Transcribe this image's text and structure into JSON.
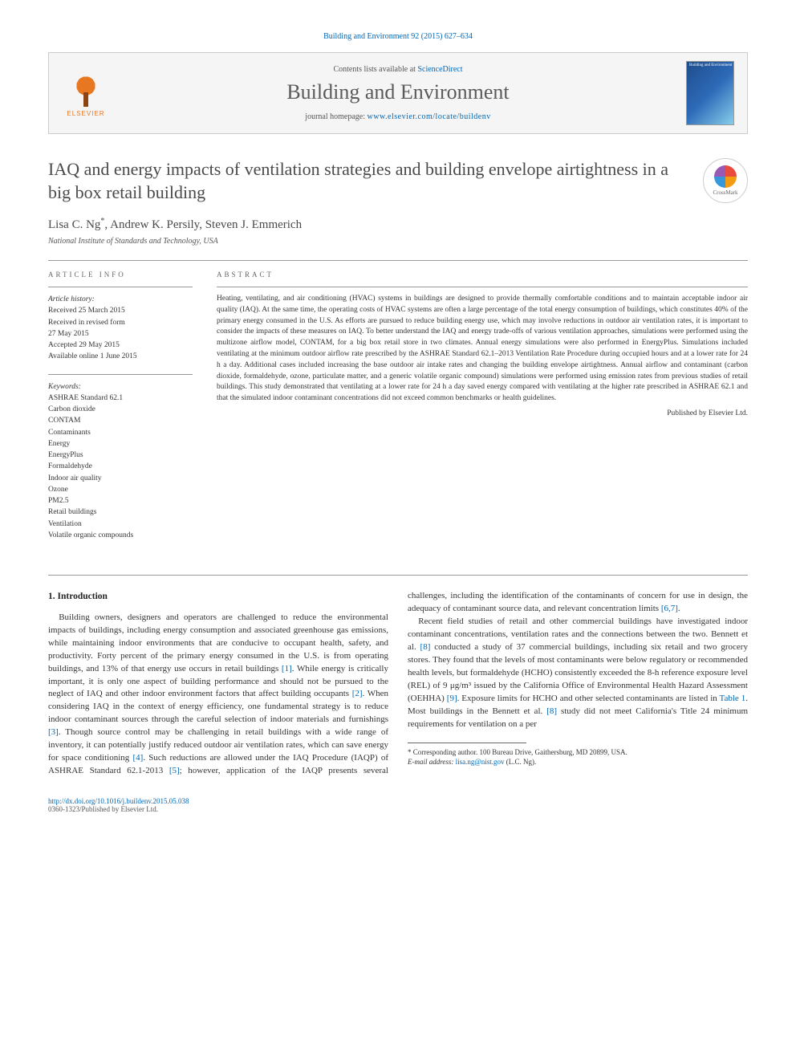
{
  "citation": "Building and Environment 92 (2015) 627–634",
  "header": {
    "contents_prefix": "Contents lists available at ",
    "contents_link": "ScienceDirect",
    "journal_name": "Building and Environment",
    "homepage_prefix": "journal homepage: ",
    "homepage_url": "www.elsevier.com/locate/buildenv",
    "publisher_logo_text": "ELSEVIER",
    "cover_label": "Building and Environment"
  },
  "article": {
    "title": "IAQ and energy impacts of ventilation strategies and building envelope airtightness in a big box retail building",
    "crossmark": "CrossMark",
    "authors_html": "Lisa C. Ng*, Andrew K. Persily, Steven J. Emmerich",
    "affiliation": "National Institute of Standards and Technology, USA"
  },
  "info": {
    "label": "ARTICLE INFO",
    "history_heading": "Article history:",
    "history": [
      "Received 25 March 2015",
      "Received in revised form",
      "27 May 2015",
      "Accepted 29 May 2015",
      "Available online 1 June 2015"
    ],
    "keywords_heading": "Keywords:",
    "keywords": [
      "ASHRAE Standard 62.1",
      "Carbon dioxide",
      "CONTAM",
      "Contaminants",
      "Energy",
      "EnergyPlus",
      "Formaldehyde",
      "Indoor air quality",
      "Ozone",
      "PM2.5",
      "Retail buildings",
      "Ventilation",
      "Volatile organic compounds"
    ]
  },
  "abstract": {
    "label": "ABSTRACT",
    "text": "Heating, ventilating, and air conditioning (HVAC) systems in buildings are designed to provide thermally comfortable conditions and to maintain acceptable indoor air quality (IAQ). At the same time, the operating costs of HVAC systems are often a large percentage of the total energy consumption of buildings, which constitutes 40% of the primary energy consumed in the U.S. As efforts are pursued to reduce building energy use, which may involve reductions in outdoor air ventilation rates, it is important to consider the impacts of these measures on IAQ. To better understand the IAQ and energy trade-offs of various ventilation approaches, simulations were performed using the multizone airflow model, CONTAM, for a big box retail store in two climates. Annual energy simulations were also performed in EnergyPlus. Simulations included ventilating at the minimum outdoor airflow rate prescribed by the ASHRAE Standard 62.1–2013 Ventilation Rate Procedure during occupied hours and at a lower rate for 24 h a day. Additional cases included increasing the base outdoor air intake rates and changing the building envelope airtightness. Annual airflow and contaminant (carbon dioxide, formaldehyde, ozone, particulate matter, and a generic volatile organic compound) simulations were performed using emission rates from previous studies of retail buildings. This study demonstrated that ventilating at a lower rate for 24 h a day saved energy compared with ventilating at the higher rate prescribed in ASHRAE 62.1 and that the simulated indoor contaminant concentrations did not exceed common benchmarks or health guidelines.",
    "publisher": "Published by Elsevier Ltd."
  },
  "body": {
    "section_number": "1.",
    "section_title": "Introduction",
    "para1_pre": "Building owners, designers and operators are challenged to reduce the environmental impacts of buildings, including energy consumption and associated greenhouse gas emissions, while maintaining indoor environments that are conducive to occupant health, safety, and productivity. Forty percent of the primary energy consumed in the U.S. is from operating buildings, and 13% of that energy use occurs in retail buildings ",
    "ref1": "[1]",
    "para1_mid1": ". While energy is critically important, it is only one aspect of building performance and should not be pursued to the neglect of IAQ and other indoor environment factors that affect building occupants ",
    "ref2": "[2]",
    "para1_mid2": ". When considering IAQ in the context of energy efficiency, one fundamental strategy is to reduce indoor contaminant sources through the careful selection of indoor materials and furnishings ",
    "ref3": "[3]",
    "para1_post": ". Though source control may be challenging in retail buildings with a wide range of inventory, it can",
    "para2_pre": "potentially justify reduced outdoor air ventilation rates, which can save energy for space conditioning ",
    "ref4": "[4]",
    "para2_mid1": ". Such reductions are allowed under the IAQ Procedure (IAQP) of ASHRAE Standard 62.1-2013 ",
    "ref5": "[5]",
    "para2_mid2": "; however, application of the IAQP presents several challenges, including the identification of the contaminants of concern for use in design, the adequacy of contaminant source data, and relevant concentration limits ",
    "ref67": "[6,7]",
    "para2_post": ".",
    "para3_pre": "Recent field studies of retail and other commercial buildings have investigated indoor contaminant concentrations, ventilation rates and the connections between the two. Bennett et al. ",
    "ref8a": "[8]",
    "para3_mid1": " conducted a study of 37 commercial buildings, including six retail and two grocery stores. They found that the levels of most contaminants were below regulatory or recommended health levels, but formaldehyde (HCHO) consistently exceeded the 8-h reference exposure level (REL) of 9 μg/m³ issued by the California Office of Environmental Health Hazard Assessment (OEHHA) ",
    "ref9": "[9]",
    "para3_mid2": ". Exposure limits for HCHO and other selected contaminants are listed in ",
    "table1": "Table 1",
    "para3_mid3": ". Most buildings in the Bennett et al. ",
    "ref8b": "[8]",
    "para3_post": " study did not meet California's Title 24 minimum requirements for ventilation on a per"
  },
  "footnote": {
    "corr": "* Corresponding author. 100 Bureau Drive, Gaithersburg, MD 20899, USA.",
    "email_label": "E-mail address: ",
    "email": "lisa.ng@nist.gov",
    "email_who": " (L.C. Ng)."
  },
  "footer": {
    "doi": "http://dx.doi.org/10.1016/j.buildenv.2015.05.038",
    "copyright": "0360-1323/Published by Elsevier Ltd."
  },
  "colors": {
    "link": "#0066b3",
    "elsevier_orange": "#e87722",
    "text": "#333333",
    "heading": "#4a4a4a"
  }
}
